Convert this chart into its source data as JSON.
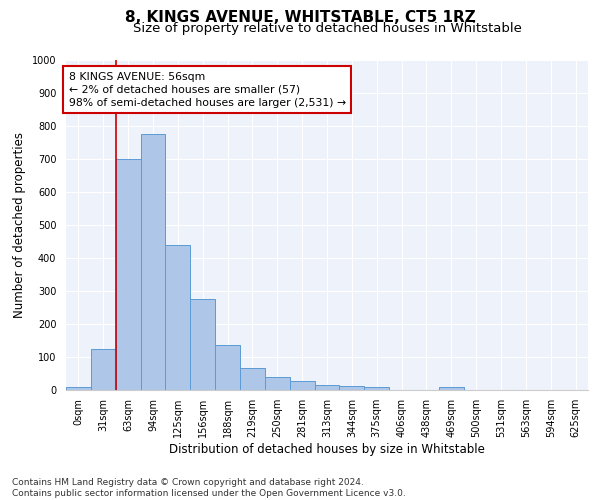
{
  "title": "8, KINGS AVENUE, WHITSTABLE, CT5 1RZ",
  "subtitle": "Size of property relative to detached houses in Whitstable",
  "xlabel": "Distribution of detached houses by size in Whitstable",
  "ylabel": "Number of detached properties",
  "bar_labels": [
    "0sqm",
    "31sqm",
    "63sqm",
    "94sqm",
    "125sqm",
    "156sqm",
    "188sqm",
    "219sqm",
    "250sqm",
    "281sqm",
    "313sqm",
    "344sqm",
    "375sqm",
    "406sqm",
    "438sqm",
    "469sqm",
    "500sqm",
    "531sqm",
    "563sqm",
    "594sqm",
    "625sqm"
  ],
  "bar_heights": [
    8,
    125,
    700,
    775,
    440,
    275,
    135,
    68,
    40,
    26,
    14,
    12,
    8,
    0,
    0,
    9,
    0,
    0,
    0,
    0,
    0
  ],
  "bar_color": "#aec6e8",
  "bar_edge_color": "#5b9bd5",
  "annotation_text": "8 KINGS AVENUE: 56sqm\n← 2% of detached houses are smaller (57)\n98% of semi-detached houses are larger (2,531) →",
  "annotation_box_color": "#ffffff",
  "annotation_box_edge_color": "#cc0000",
  "vline_color": "#cc0000",
  "ylim": [
    0,
    1000
  ],
  "background_color": "#eef2fa",
  "grid_color": "#ffffff",
  "footer_text": "Contains HM Land Registry data © Crown copyright and database right 2024.\nContains public sector information licensed under the Open Government Licence v3.0.",
  "title_fontsize": 11,
  "subtitle_fontsize": 9.5,
  "xlabel_fontsize": 8.5,
  "ylabel_fontsize": 8.5,
  "tick_fontsize": 7,
  "footer_fontsize": 6.5
}
